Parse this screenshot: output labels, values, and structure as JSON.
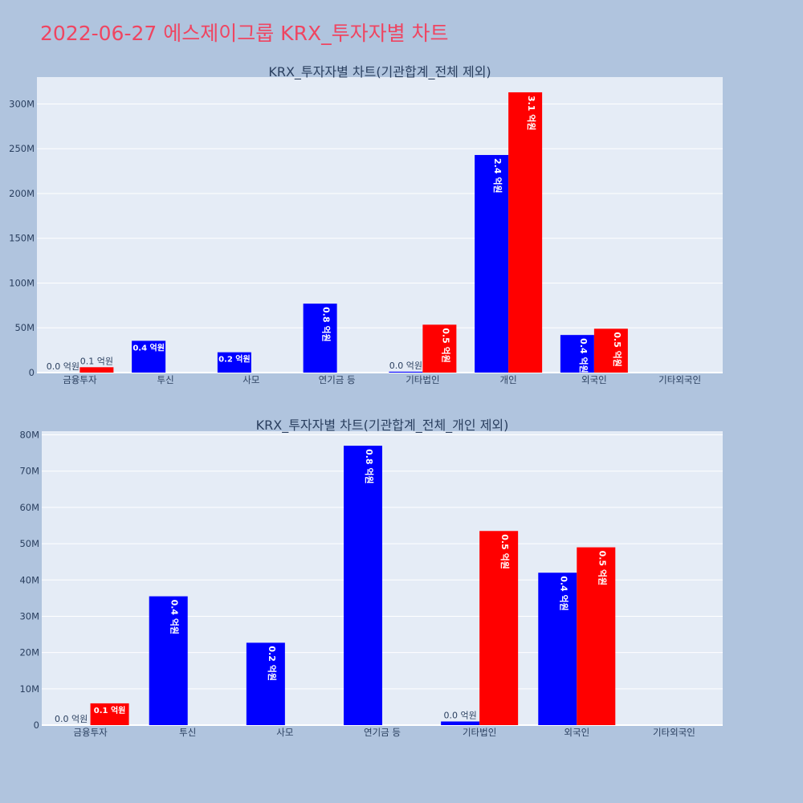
{
  "page_title": "2022-06-27 에스제이그룹 KRX_투자자별 차트",
  "colors": {
    "series_a": "#0000ff",
    "series_b": "#ff0000",
    "plot_bg": "#e5ecf6",
    "page_bg": "#b0c4de",
    "title": "#ef4561"
  },
  "chart_data": [
    {
      "type": "bar",
      "title": "KRX_투자자별 차트(기관합계_전체 제외)",
      "categories": [
        "금융투자",
        "투신",
        "사모",
        "연기금 등",
        "기타법인",
        "개인",
        "외국인",
        "기타외국인"
      ],
      "y_ticks": [
        "0",
        "50M",
        "100M",
        "150M",
        "200M",
        "250M",
        "300M"
      ],
      "ylim": [
        0,
        330000000
      ],
      "grid": true,
      "series": [
        {
          "values": [
            0,
            35500000,
            22700000,
            77000000,
            1000000,
            243000000,
            42000000,
            0
          ],
          "labels": [
            "0.0 억원",
            "0.4 억원",
            "0.2 억원",
            "0.8 억원",
            "0.0 억원",
            "2.4 억원",
            "0.4 억원",
            ""
          ]
        },
        {
          "values": [
            6000000,
            0,
            0,
            0,
            53500000,
            313000000,
            49000000,
            0
          ],
          "labels": [
            "0.1 억원",
            "",
            "",
            "",
            "0.5 억원",
            "3.1 억원",
            "0.5 억원",
            ""
          ]
        }
      ]
    },
    {
      "type": "bar",
      "title": "KRX_투자자별 차트(기관합계_전체_개인 제외)",
      "categories": [
        "금융투자",
        "투신",
        "사모",
        "연기금 등",
        "기타법인",
        "외국인",
        "기타외국인"
      ],
      "y_ticks": [
        "0",
        "10M",
        "20M",
        "30M",
        "40M",
        "50M",
        "60M",
        "70M",
        "80M"
      ],
      "ylim": [
        0,
        81000000
      ],
      "grid": true,
      "series": [
        {
          "values": [
            0,
            35500000,
            22700000,
            77000000,
            1000000,
            42000000,
            0
          ],
          "labels": [
            "0.0 억원",
            "0.4 억원",
            "0.2 억원",
            "0.8 억원",
            "0.0 억원",
            "0.4 억원",
            ""
          ]
        },
        {
          "values": [
            6000000,
            0,
            0,
            0,
            53500000,
            49000000,
            0
          ],
          "labels": [
            "0.1 억원",
            "",
            "",
            "",
            "0.5 억원",
            "0.5 억원",
            ""
          ]
        }
      ]
    }
  ]
}
